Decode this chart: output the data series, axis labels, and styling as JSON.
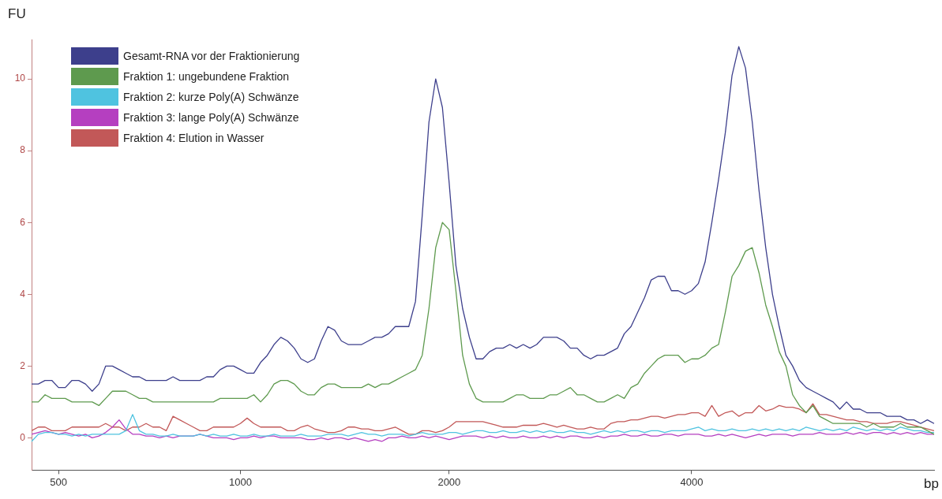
{
  "chart_data": {
    "type": "line",
    "xlabel": "bp",
    "ylabel": "FU",
    "legend": "top left",
    "categories": [
      null,
      null,
      null,
      null,
      "500",
      null,
      null,
      null,
      null,
      null,
      null,
      null,
      null,
      null,
      null,
      null,
      null,
      null,
      null,
      null,
      null,
      null,
      null,
      null,
      null,
      null,
      null,
      null,
      null,
      null,
      null,
      "1000",
      null,
      null,
      null,
      null,
      null,
      null,
      null,
      null,
      null,
      null,
      null,
      null,
      null,
      null,
      null,
      null,
      null,
      null,
      null,
      null,
      null,
      null,
      null,
      null,
      null,
      null,
      null,
      null,
      null,
      null,
      "2000",
      null,
      null,
      null,
      null,
      null,
      null,
      null,
      null,
      null,
      null,
      null,
      null,
      null,
      null,
      null,
      null,
      null,
      null,
      null,
      null,
      null,
      null,
      null,
      null,
      null,
      null,
      null,
      null,
      null,
      null,
      null,
      null,
      null,
      null,
      null,
      "4000",
      null,
      null,
      null,
      null,
      null,
      null,
      null,
      null,
      null,
      null,
      null,
      null,
      null,
      null,
      null,
      null,
      null,
      null,
      null,
      null,
      null,
      null,
      null,
      null,
      null,
      null,
      null,
      null,
      null,
      null,
      null,
      null,
      null,
      null,
      null,
      null
    ],
    "ylim": [
      -0.9,
      11.1
    ],
    "yticks": [
      0,
      2,
      4,
      6,
      8,
      10
    ],
    "series": [
      {
        "name": "Gesamt-RNA vor der Fraktionierung",
        "color": "#3d3f8c",
        "values": [
          1.5,
          1.5,
          1.6,
          1.6,
          1.4,
          1.4,
          1.6,
          1.6,
          1.5,
          1.3,
          1.5,
          2.0,
          2.0,
          1.9,
          1.8,
          1.7,
          1.7,
          1.6,
          1.6,
          1.6,
          1.6,
          1.7,
          1.6,
          1.6,
          1.6,
          1.6,
          1.7,
          1.7,
          1.9,
          2.0,
          2.0,
          1.9,
          1.8,
          1.8,
          2.1,
          2.3,
          2.6,
          2.8,
          2.7,
          2.5,
          2.2,
          2.1,
          2.2,
          2.7,
          3.1,
          3.0,
          2.7,
          2.6,
          2.6,
          2.6,
          2.7,
          2.8,
          2.8,
          2.9,
          3.1,
          3.1,
          3.1,
          3.8,
          6.2,
          8.8,
          10.0,
          9.2,
          7.1,
          4.8,
          3.6,
          2.8,
          2.2,
          2.2,
          2.4,
          2.5,
          2.5,
          2.6,
          2.5,
          2.6,
          2.5,
          2.6,
          2.8,
          2.8,
          2.8,
          2.7,
          2.5,
          2.5,
          2.3,
          2.2,
          2.3,
          2.3,
          2.4,
          2.5,
          2.9,
          3.1,
          3.5,
          3.9,
          4.4,
          4.5,
          4.5,
          4.1,
          4.1,
          4.0,
          4.1,
          4.3,
          4.9,
          6.0,
          7.2,
          8.5,
          10.1,
          10.9,
          10.3,
          8.8,
          6.9,
          5.3,
          4.0,
          3.1,
          2.3,
          2.0,
          1.6,
          1.4,
          1.3,
          1.2,
          1.1,
          1.0,
          0.8,
          1.0,
          0.8,
          0.8,
          0.7,
          0.7,
          0.7,
          0.6,
          0.6,
          0.6,
          0.5,
          0.5,
          0.4,
          0.5,
          0.4
        ]
      },
      {
        "name": "Fraktion 1: ungebundene Fraktion",
        "color": "#5e9a4e",
        "values": [
          1.0,
          1.0,
          1.2,
          1.1,
          1.1,
          1.1,
          1.0,
          1.0,
          1.0,
          1.0,
          0.9,
          1.1,
          1.3,
          1.3,
          1.3,
          1.2,
          1.1,
          1.1,
          1.0,
          1.0,
          1.0,
          1.0,
          1.0,
          1.0,
          1.0,
          1.0,
          1.0,
          1.0,
          1.1,
          1.1,
          1.1,
          1.1,
          1.1,
          1.2,
          1.0,
          1.2,
          1.5,
          1.6,
          1.6,
          1.5,
          1.3,
          1.2,
          1.2,
          1.4,
          1.5,
          1.5,
          1.4,
          1.4,
          1.4,
          1.4,
          1.5,
          1.4,
          1.5,
          1.5,
          1.6,
          1.7,
          1.8,
          1.9,
          2.3,
          3.6,
          5.3,
          6.0,
          5.8,
          4.1,
          2.3,
          1.5,
          1.1,
          1.0,
          1.0,
          1.0,
          1.0,
          1.1,
          1.2,
          1.2,
          1.1,
          1.1,
          1.1,
          1.2,
          1.2,
          1.3,
          1.4,
          1.2,
          1.2,
          1.1,
          1.0,
          1.0,
          1.1,
          1.2,
          1.1,
          1.4,
          1.5,
          1.8,
          2.0,
          2.2,
          2.3,
          2.3,
          2.3,
          2.1,
          2.2,
          2.2,
          2.3,
          2.5,
          2.6,
          3.5,
          4.5,
          4.8,
          5.2,
          5.3,
          4.6,
          3.7,
          3.1,
          2.4,
          2.0,
          1.2,
          0.9,
          0.7,
          0.9,
          0.6,
          0.5,
          0.4,
          0.4,
          0.4,
          0.4,
          0.4,
          0.3,
          0.4,
          0.3,
          0.3,
          0.3,
          0.4,
          0.3,
          0.3,
          0.3,
          0.2,
          0.1
        ]
      },
      {
        "name": "Fraktion 2: kurze Poly(A) Schwänze",
        "color": "#4fc3e0",
        "values": [
          -0.1,
          0.1,
          0.15,
          0.15,
          0.1,
          0.1,
          0.05,
          0.1,
          0.05,
          0.1,
          0.1,
          0.1,
          0.1,
          0.1,
          0.2,
          0.65,
          0.2,
          0.1,
          0.1,
          0.05,
          0.05,
          0.1,
          0.05,
          0.05,
          0.05,
          0.1,
          0.05,
          0.1,
          0.05,
          0.05,
          0.1,
          0.05,
          0.05,
          0.1,
          0.05,
          0.05,
          0.1,
          0.05,
          0.05,
          0.05,
          0.1,
          0.05,
          0.05,
          0.05,
          0.1,
          0.1,
          0.1,
          0.05,
          0.1,
          0.15,
          0.1,
          0.1,
          0.05,
          0.1,
          0.1,
          0.1,
          0.05,
          0.1,
          0.15,
          0.1,
          0.1,
          0.1,
          0.15,
          0.15,
          0.1,
          0.15,
          0.2,
          0.2,
          0.15,
          0.15,
          0.2,
          0.15,
          0.15,
          0.2,
          0.15,
          0.2,
          0.15,
          0.2,
          0.15,
          0.15,
          0.2,
          0.15,
          0.15,
          0.1,
          0.15,
          0.2,
          0.15,
          0.2,
          0.15,
          0.2,
          0.2,
          0.15,
          0.2,
          0.2,
          0.15,
          0.2,
          0.2,
          0.2,
          0.25,
          0.3,
          0.2,
          0.25,
          0.2,
          0.2,
          0.25,
          0.2,
          0.2,
          0.25,
          0.2,
          0.25,
          0.2,
          0.25,
          0.2,
          0.25,
          0.2,
          0.3,
          0.25,
          0.2,
          0.25,
          0.2,
          0.25,
          0.2,
          0.3,
          0.25,
          0.2,
          0.25,
          0.2,
          0.25,
          0.2,
          0.3,
          0.25,
          0.2,
          0.2,
          0.15,
          0.15
        ]
      },
      {
        "name": "Fraktion 3: lange Poly(A) Schwänze",
        "color": "#b53fc0",
        "values": [
          0.1,
          0.15,
          0.2,
          0.15,
          0.1,
          0.15,
          0.1,
          0.05,
          0.1,
          0.0,
          0.05,
          0.15,
          0.3,
          0.5,
          0.25,
          0.1,
          0.1,
          0.05,
          0.05,
          0.0,
          0.05,
          0.0,
          0.05,
          0.05,
          0.05,
          0.1,
          0.05,
          0.0,
          0.0,
          0.0,
          -0.05,
          0.0,
          0.0,
          0.05,
          0.0,
          0.05,
          0.05,
          0.0,
          0.0,
          0.0,
          0.0,
          -0.05,
          -0.05,
          0.0,
          -0.05,
          0.0,
          0.0,
          -0.05,
          0.0,
          -0.05,
          -0.1,
          -0.05,
          -0.1,
          0.0,
          0.0,
          0.05,
          0.0,
          0.0,
          0.05,
          0.0,
          0.05,
          0.0,
          -0.05,
          0.0,
          0.05,
          0.05,
          0.05,
          0.0,
          0.05,
          0.0,
          0.05,
          0.0,
          0.0,
          0.05,
          0.0,
          0.0,
          0.05,
          0.0,
          0.05,
          0.0,
          0.05,
          0.05,
          0.0,
          0.0,
          0.05,
          0.0,
          0.05,
          0.05,
          0.1,
          0.05,
          0.05,
          0.1,
          0.05,
          0.05,
          0.1,
          0.1,
          0.05,
          0.1,
          0.1,
          0.1,
          0.05,
          0.05,
          0.1,
          0.05,
          0.1,
          0.05,
          0.0,
          0.05,
          0.1,
          0.05,
          0.1,
          0.1,
          0.1,
          0.05,
          0.1,
          0.1,
          0.1,
          0.15,
          0.1,
          0.1,
          0.1,
          0.15,
          0.1,
          0.15,
          0.1,
          0.15,
          0.15,
          0.1,
          0.15,
          0.1,
          0.15,
          0.1,
          0.15,
          0.1,
          0.1
        ]
      },
      {
        "name": "Fraktion 4: Elution in Wasser",
        "color": "#c25858",
        "values": [
          0.2,
          0.3,
          0.3,
          0.2,
          0.2,
          0.2,
          0.3,
          0.3,
          0.3,
          0.3,
          0.3,
          0.4,
          0.3,
          0.3,
          0.2,
          0.3,
          0.3,
          0.4,
          0.3,
          0.3,
          0.2,
          0.6,
          0.5,
          0.4,
          0.3,
          0.2,
          0.2,
          0.3,
          0.3,
          0.3,
          0.3,
          0.4,
          0.55,
          0.4,
          0.3,
          0.3,
          0.3,
          0.3,
          0.2,
          0.2,
          0.3,
          0.35,
          0.25,
          0.2,
          0.15,
          0.15,
          0.2,
          0.3,
          0.3,
          0.25,
          0.25,
          0.2,
          0.2,
          0.25,
          0.3,
          0.2,
          0.1,
          0.1,
          0.2,
          0.2,
          0.15,
          0.2,
          0.3,
          0.45,
          0.45,
          0.45,
          0.45,
          0.45,
          0.4,
          0.35,
          0.3,
          0.3,
          0.3,
          0.35,
          0.35,
          0.35,
          0.4,
          0.35,
          0.3,
          0.35,
          0.3,
          0.25,
          0.25,
          0.3,
          0.25,
          0.25,
          0.4,
          0.45,
          0.45,
          0.5,
          0.5,
          0.55,
          0.6,
          0.6,
          0.55,
          0.6,
          0.65,
          0.65,
          0.7,
          0.7,
          0.6,
          0.9,
          0.6,
          0.7,
          0.75,
          0.6,
          0.7,
          0.7,
          0.9,
          0.75,
          0.8,
          0.9,
          0.85,
          0.85,
          0.8,
          0.7,
          0.95,
          0.65,
          0.65,
          0.6,
          0.55,
          0.5,
          0.5,
          0.45,
          0.45,
          0.4,
          0.4,
          0.4,
          0.45,
          0.45,
          0.4,
          0.35,
          0.3,
          0.25,
          0.2
        ]
      }
    ]
  }
}
